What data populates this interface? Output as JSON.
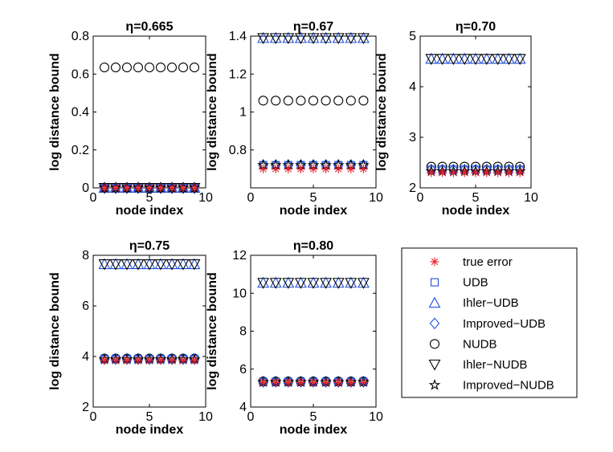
{
  "figure_title": "log distance bound vs node index for several eta values",
  "legend": {
    "entries": [
      {
        "label": "true error",
        "marker": "asterisk",
        "color": "#e8202a"
      },
      {
        "label": "UDB",
        "marker": "square",
        "color": "#1f4fd8"
      },
      {
        "label": "Ihler−UDB",
        "marker": "triangle-up",
        "color": "#1f4fd8"
      },
      {
        "label": "Improved−UDB",
        "marker": "diamond",
        "color": "#1f4fd8"
      },
      {
        "label": "NUDB",
        "marker": "circle",
        "color": "#000000"
      },
      {
        "label": "Ihler−NUDB",
        "marker": "triangle-down",
        "color": "#000000"
      },
      {
        "label": "Improved−NUDB",
        "marker": "star",
        "color": "#000000"
      }
    ]
  },
  "chart_data": [
    {
      "type": "scatter",
      "title": "η=0.665",
      "xlabel": "node index",
      "ylabel": "log distance bound",
      "xlim": [
        0,
        10
      ],
      "ylim": [
        0,
        0.8
      ],
      "xticks": [
        0,
        5,
        10
      ],
      "yticks": [
        0,
        0.2,
        0.4,
        0.6,
        0.8
      ],
      "x": [
        1,
        2,
        3,
        4,
        5,
        6,
        7,
        8,
        9
      ],
      "series": [
        {
          "name": "true error",
          "value": 0.0
        },
        {
          "name": "UDB",
          "value": 0.0
        },
        {
          "name": "Ihler−UDB",
          "value": 0.0
        },
        {
          "name": "Improved−UDB",
          "value": 0.0
        },
        {
          "name": "NUDB",
          "value": 0.635
        },
        {
          "name": "Ihler−NUDB",
          "value": 0.0
        },
        {
          "name": "Improved−NUDB",
          "value": 0.0
        }
      ]
    },
    {
      "type": "scatter",
      "title": "η=0.67",
      "xlabel": "node index",
      "ylabel": "log distance bound",
      "xlim": [
        0,
        10
      ],
      "ylim": [
        0.6,
        1.4
      ],
      "xticks": [
        0,
        5,
        10
      ],
      "yticks": [
        0.8,
        1.0,
        1.2,
        1.4
      ],
      "x": [
        1,
        2,
        3,
        4,
        5,
        6,
        7,
        8,
        9
      ],
      "series": [
        {
          "name": "true error",
          "value": 0.7
        },
        {
          "name": "UDB",
          "value": 0.72
        },
        {
          "name": "Ihler−UDB",
          "value": 1.39
        },
        {
          "name": "Improved−UDB",
          "value": 0.72
        },
        {
          "name": "NUDB",
          "value": 1.06
        },
        {
          "name": "Ihler−NUDB",
          "value": 1.39
        },
        {
          "name": "Improved−NUDB",
          "value": 0.72
        }
      ]
    },
    {
      "type": "scatter",
      "title": "η=0.70",
      "xlabel": "node index",
      "ylabel": "log distance bound",
      "xlim": [
        0,
        10
      ],
      "ylim": [
        2,
        5
      ],
      "xticks": [
        0,
        5,
        10
      ],
      "yticks": [
        2,
        3,
        4,
        5
      ],
      "x": [
        1,
        2,
        3,
        4,
        5,
        6,
        7,
        8,
        9
      ],
      "series": [
        {
          "name": "true error",
          "value": 2.3
        },
        {
          "name": "UDB",
          "value": 2.36
        },
        {
          "name": "Ihler−UDB",
          "value": 4.55
        },
        {
          "name": "Improved−UDB",
          "value": 2.36
        },
        {
          "name": "NUDB",
          "value": 2.42
        },
        {
          "name": "Ihler−NUDB",
          "value": 4.55
        },
        {
          "name": "Improved−NUDB",
          "value": 2.33
        }
      ]
    },
    {
      "type": "scatter",
      "title": "η=0.75",
      "xlabel": "node index",
      "ylabel": "log distance bound",
      "xlim": [
        0,
        10
      ],
      "ylim": [
        2,
        8
      ],
      "xticks": [
        0,
        5,
        10
      ],
      "yticks": [
        2,
        4,
        6,
        8
      ],
      "x": [
        1,
        2,
        3,
        4,
        5,
        6,
        7,
        8,
        9
      ],
      "series": [
        {
          "name": "true error",
          "value": 3.85
        },
        {
          "name": "UDB",
          "value": 3.9
        },
        {
          "name": "Ihler−UDB",
          "value": 7.65
        },
        {
          "name": "Improved−UDB",
          "value": 3.9
        },
        {
          "name": "NUDB",
          "value": 3.92
        },
        {
          "name": "Ihler−NUDB",
          "value": 7.65
        },
        {
          "name": "Improved−NUDB",
          "value": 3.88
        }
      ]
    },
    {
      "type": "scatter",
      "title": "η=0.80",
      "xlabel": "node index",
      "ylabel": "log distance bound",
      "xlim": [
        0,
        10
      ],
      "ylim": [
        4,
        12
      ],
      "xticks": [
        0,
        5,
        10
      ],
      "yticks": [
        4,
        6,
        8,
        10,
        12
      ],
      "x": [
        1,
        2,
        3,
        4,
        5,
        6,
        7,
        8,
        9
      ],
      "series": [
        {
          "name": "true error",
          "value": 5.3
        },
        {
          "name": "UDB",
          "value": 5.33
        },
        {
          "name": "Ihler−UDB",
          "value": 10.55
        },
        {
          "name": "Improved−UDB",
          "value": 5.33
        },
        {
          "name": "NUDB",
          "value": 5.35
        },
        {
          "name": "Ihler−NUDB",
          "value": 10.55
        },
        {
          "name": "Improved−NUDB",
          "value": 5.32
        }
      ]
    }
  ]
}
